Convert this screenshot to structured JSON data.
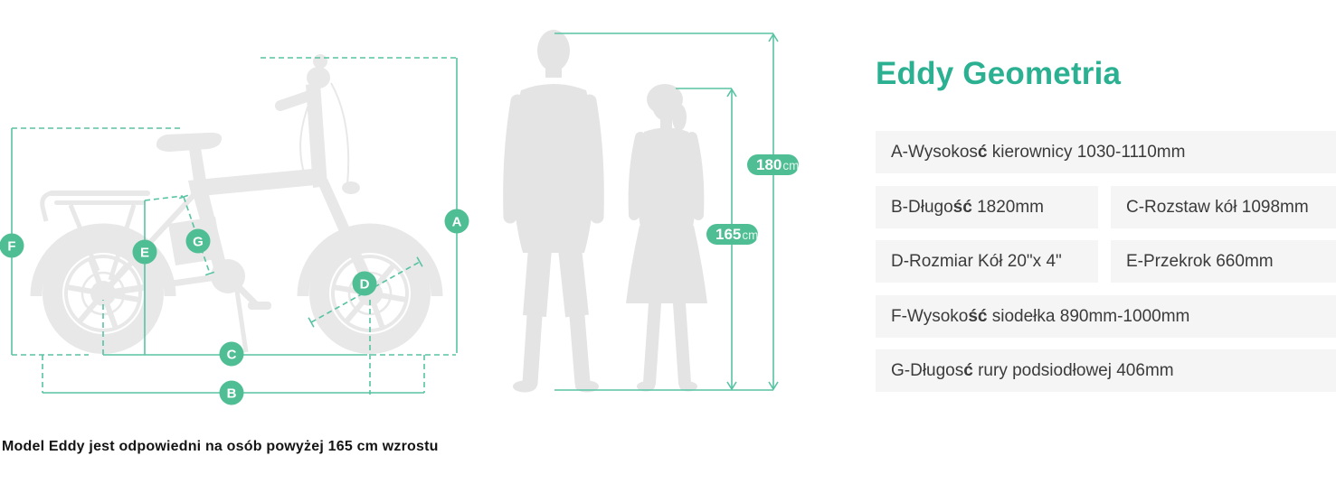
{
  "title": "Eddy Geometria",
  "note": "Model Eddy jest odpowiedni na osób powyżej 165 cm wzrostu",
  "colors": {
    "accent": "#2BB192",
    "green": "#4FBE94",
    "line": "#58C3A3",
    "bike_gray": "#E8E8E8",
    "person_gray": "#E4E4E4",
    "row_bg": "#F5F5F5",
    "row_text": "#3B3B3B",
    "note_text": "#141414"
  },
  "specs": [
    {
      "letter": "A",
      "text": "A-Wysokosć kierownicy 1030-1110mm",
      "segments": [
        {
          "t": "A-Wysokos"
        },
        {
          "t": "ć",
          "b": true
        },
        {
          "t": " kierownicy 1030-1110mm"
        }
      ]
    },
    {
      "letter": "B",
      "text": "B-Długość 1820mm",
      "segments": [
        {
          "t": "B-Długo"
        },
        {
          "t": "ść",
          "b": true
        },
        {
          "t": " 1820mm"
        }
      ]
    },
    {
      "letter": "C",
      "text": "C-Rozstaw kół 1098mm",
      "segments": [
        {
          "t": "C-Rozstaw kół 1098mm"
        }
      ]
    },
    {
      "letter": "D",
      "text": "D-Rozmiar Kół 20\"x 4\"",
      "segments": [
        {
          "t": "D-Rozmiar Kół 20\"x 4\""
        }
      ]
    },
    {
      "letter": "E",
      "text": "E-Przekrok 660mm",
      "segments": [
        {
          "t": "E-Przekrok 660mm"
        }
      ]
    },
    {
      "letter": "F",
      "text": "F-Wysokość siodełka 890mm-1000mm",
      "segments": [
        {
          "t": "F-Wysoko"
        },
        {
          "t": "ść",
          "b": true
        },
        {
          "t": " siodełka 890mm-1000mm"
        }
      ]
    },
    {
      "letter": "G",
      "text": "G-Długosć rury podsiodłowej 406mm",
      "segments": [
        {
          "t": "G-Długos"
        },
        {
          "t": "ć",
          "b": true
        },
        {
          "t": " rury podsiodłowej 406mm"
        }
      ]
    }
  ],
  "heights": [
    {
      "value": "180",
      "unit": "cm"
    },
    {
      "value": "165",
      "unit": "cm"
    }
  ]
}
